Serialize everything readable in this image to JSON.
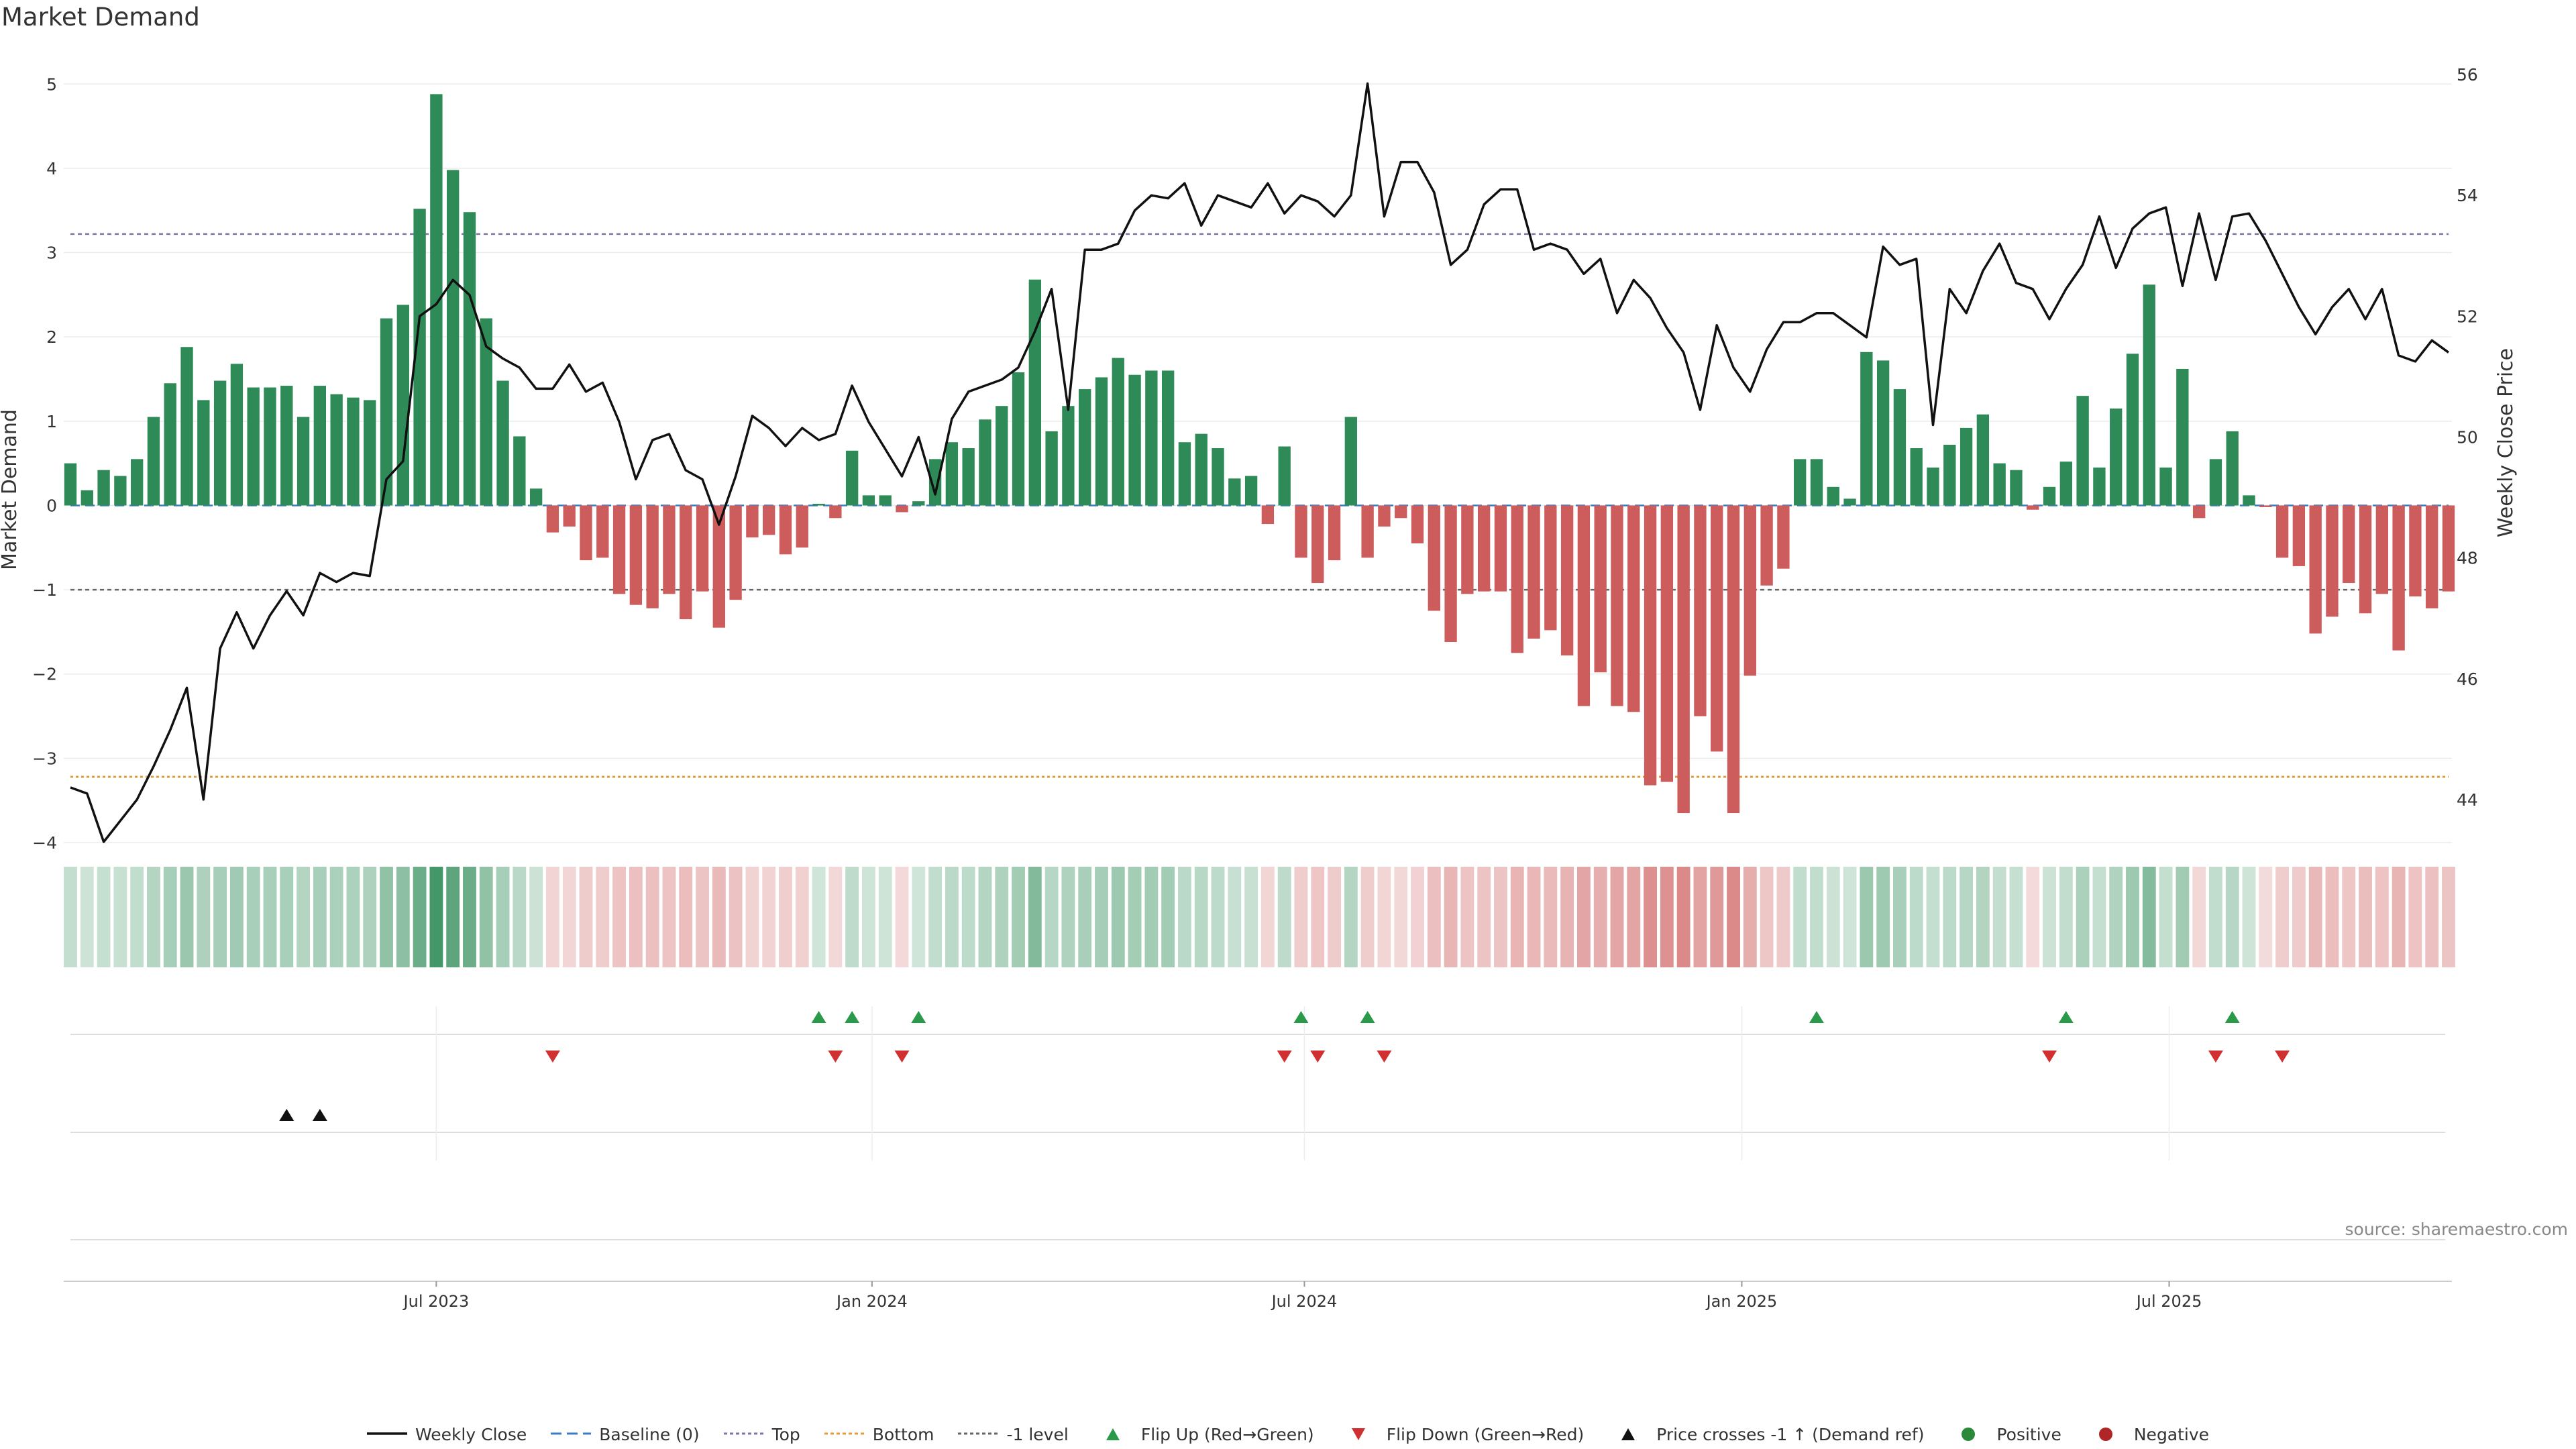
{
  "title": "Market Demand",
  "source": "source: sharemaestro.com",
  "chart_data": {
    "type": "bar",
    "ylabel_left": "Market Demand",
    "ylabel_right": "Weekly Close Price",
    "ylim_left": [
      -4.35,
      5.4
    ],
    "ylim_right": [
      42.8,
      56.4
    ],
    "yticks_left": [
      5,
      4,
      3,
      2,
      1,
      0,
      -1,
      -2,
      -3,
      -4
    ],
    "ytick_labels_left": [
      "5",
      "4",
      "3",
      "2",
      "1",
      "0",
      "−1",
      "−2",
      "−3",
      "−4"
    ],
    "yticks_right": [
      56,
      54,
      52,
      50,
      48,
      46,
      44
    ],
    "ytick_labels_right": [
      "56",
      "54",
      "52",
      "50",
      "48",
      "46",
      "44"
    ],
    "levels": {
      "top": 3.22,
      "bottom": -3.22,
      "minus_one": -1.0,
      "baseline": 0
    },
    "x_ticks": [
      {
        "label": "Jul 2023",
        "index": 22
      },
      {
        "label": "Jan 2024",
        "index": 48.2
      },
      {
        "label": "Jul 2024",
        "index": 74.2
      },
      {
        "label": "Jan 2025",
        "index": 100.5
      },
      {
        "label": "Jul 2025",
        "index": 126.2
      }
    ],
    "series": [
      {
        "name": "Market Demand",
        "values": [
          0.5,
          0.18,
          0.42,
          0.35,
          0.55,
          1.05,
          1.45,
          1.88,
          1.25,
          1.48,
          1.68,
          1.4,
          1.4,
          1.42,
          1.05,
          1.42,
          1.32,
          1.28,
          1.25,
          2.22,
          2.38,
          3.52,
          4.88,
          3.98,
          3.48,
          2.22,
          1.48,
          0.82,
          0.2,
          -0.32,
          -0.25,
          -0.65,
          -0.62,
          -1.05,
          -1.18,
          -1.22,
          -1.05,
          -1.35,
          -1.02,
          -1.45,
          -1.12,
          -0.38,
          -0.35,
          -0.58,
          -0.5,
          0.02,
          -0.15,
          0.65,
          0.12,
          0.12,
          -0.08,
          0.05,
          0.55,
          0.75,
          0.68,
          1.02,
          1.18,
          1.58,
          2.68,
          0.88,
          1.18,
          1.38,
          1.52,
          1.75,
          1.55,
          1.6,
          1.6,
          0.75,
          0.85,
          0.68,
          0.32,
          0.35,
          -0.22,
          0.7,
          -0.62,
          -0.92,
          -0.65,
          1.05,
          -0.62,
          -0.25,
          -0.15,
          -0.45,
          -1.25,
          -1.62,
          -1.05,
          -1.02,
          -1.02,
          -1.75,
          -1.58,
          -1.48,
          -1.78,
          -2.38,
          -1.98,
          -2.38,
          -2.45,
          -3.32,
          -3.28,
          -3.65,
          -2.5,
          -2.92,
          -3.65,
          -2.02,
          -0.95,
          -0.75,
          0.55,
          0.55,
          0.22,
          0.08,
          1.82,
          1.72,
          1.38,
          0.68,
          0.45,
          0.72,
          0.92,
          1.08,
          0.5,
          0.42,
          -0.05,
          0.22,
          0.52,
          1.3,
          0.45,
          1.15,
          1.8,
          2.62,
          0.45,
          1.62,
          -0.15,
          0.55,
          0.88,
          0.12,
          -0.02,
          -0.62,
          -0.72,
          -1.52,
          -1.32,
          -0.92,
          -1.28,
          -1.05,
          -1.72,
          -1.08,
          -1.22,
          -1.02
        ]
      },
      {
        "name": "Weekly Close",
        "values": [
          44.2,
          44.1,
          43.3,
          43.65,
          44,
          44.55,
          45.15,
          45.85,
          44,
          46.5,
          47.1,
          46.5,
          47.05,
          47.45,
          47.05,
          47.75,
          47.6,
          47.75,
          47.7,
          49.3,
          49.6,
          52,
          52.2,
          52.6,
          52.35,
          51.5,
          51.3,
          51.15,
          50.8,
          50.8,
          51.2,
          50.75,
          50.9,
          50.25,
          49.3,
          49.95,
          50.05,
          49.45,
          49.3,
          48.55,
          49.35,
          50.35,
          50.15,
          49.85,
          50.15,
          49.95,
          50.05,
          50.85,
          50.25,
          49.8,
          49.35,
          50,
          49.05,
          50.3,
          50.75,
          50.85,
          50.95,
          51.15,
          51.75,
          52.45,
          50.45,
          53.1,
          53.1,
          53.2,
          53.75,
          54,
          53.95,
          54.2,
          53.5,
          54,
          53.9,
          53.8,
          54.2,
          53.7,
          54,
          53.9,
          53.65,
          54,
          55.85,
          53.65,
          54.55,
          54.55,
          54.05,
          52.85,
          53.1,
          53.85,
          54.1,
          54.1,
          53.1,
          53.2,
          53.1,
          52.7,
          52.95,
          52.05,
          52.6,
          52.3,
          51.8,
          51.4,
          50.45,
          51.85,
          51.15,
          50.75,
          51.45,
          51.9,
          51.9,
          52.05,
          52.05,
          51.85,
          51.65,
          53.15,
          52.85,
          52.95,
          50.2,
          52.45,
          52.05,
          52.75,
          53.2,
          52.55,
          52.45,
          51.95,
          52.45,
          52.85,
          53.65,
          52.8,
          53.45,
          53.7,
          53.8,
          52.5,
          53.7,
          52.6,
          53.65,
          53.7,
          53.25,
          52.7,
          52.15,
          51.7,
          52.15,
          52.45,
          51.95,
          52.45,
          51.35,
          51.25,
          51.6,
          51.4
        ]
      }
    ],
    "heat_strip": "demand intensity strip (green = positive, red = negative)",
    "flip_up_indices": [
      45,
      47,
      51,
      74,
      78,
      105,
      120,
      130
    ],
    "flip_down_indices": [
      29,
      46,
      50,
      73,
      75,
      79,
      119,
      129,
      133
    ],
    "price_cross_indices": [
      13,
      15
    ],
    "legend": [
      {
        "label": "Weekly Close",
        "kind": "line",
        "color": "#111111"
      },
      {
        "label": "Baseline (0)",
        "kind": "dashed",
        "color": "#3b7dc4"
      },
      {
        "label": "Top",
        "kind": "dotted",
        "color": "#7a76a8"
      },
      {
        "label": "Bottom",
        "kind": "dotted",
        "color": "#e39c3a"
      },
      {
        "label": "-1 level",
        "kind": "dotted",
        "color": "#666666"
      },
      {
        "label": "Flip Up (Red→Green)",
        "kind": "tri-up",
        "color": "#2a9a4a"
      },
      {
        "label": "Flip Down (Green→Red)",
        "kind": "tri-down",
        "color": "#d03030"
      },
      {
        "label": "Price crosses -1 ↑ (Demand ref)",
        "kind": "tri-up",
        "color": "#111111"
      },
      {
        "label": "Positive",
        "kind": "dot",
        "color": "#2a8a3a"
      },
      {
        "label": "Negative",
        "kind": "dot",
        "color": "#b02525"
      }
    ],
    "colors": {
      "positive_bar": "#2e8b57",
      "negative_bar": "#cd5c5c",
      "price_line": "#111111",
      "top_line": "#7a76a8",
      "bottom_line": "#e39c3a",
      "minus_one_line": "#666666",
      "baseline": "#3b7dc4",
      "flip_up": "#2a9a4a",
      "flip_down": "#d03030",
      "cross": "#111111"
    }
  }
}
